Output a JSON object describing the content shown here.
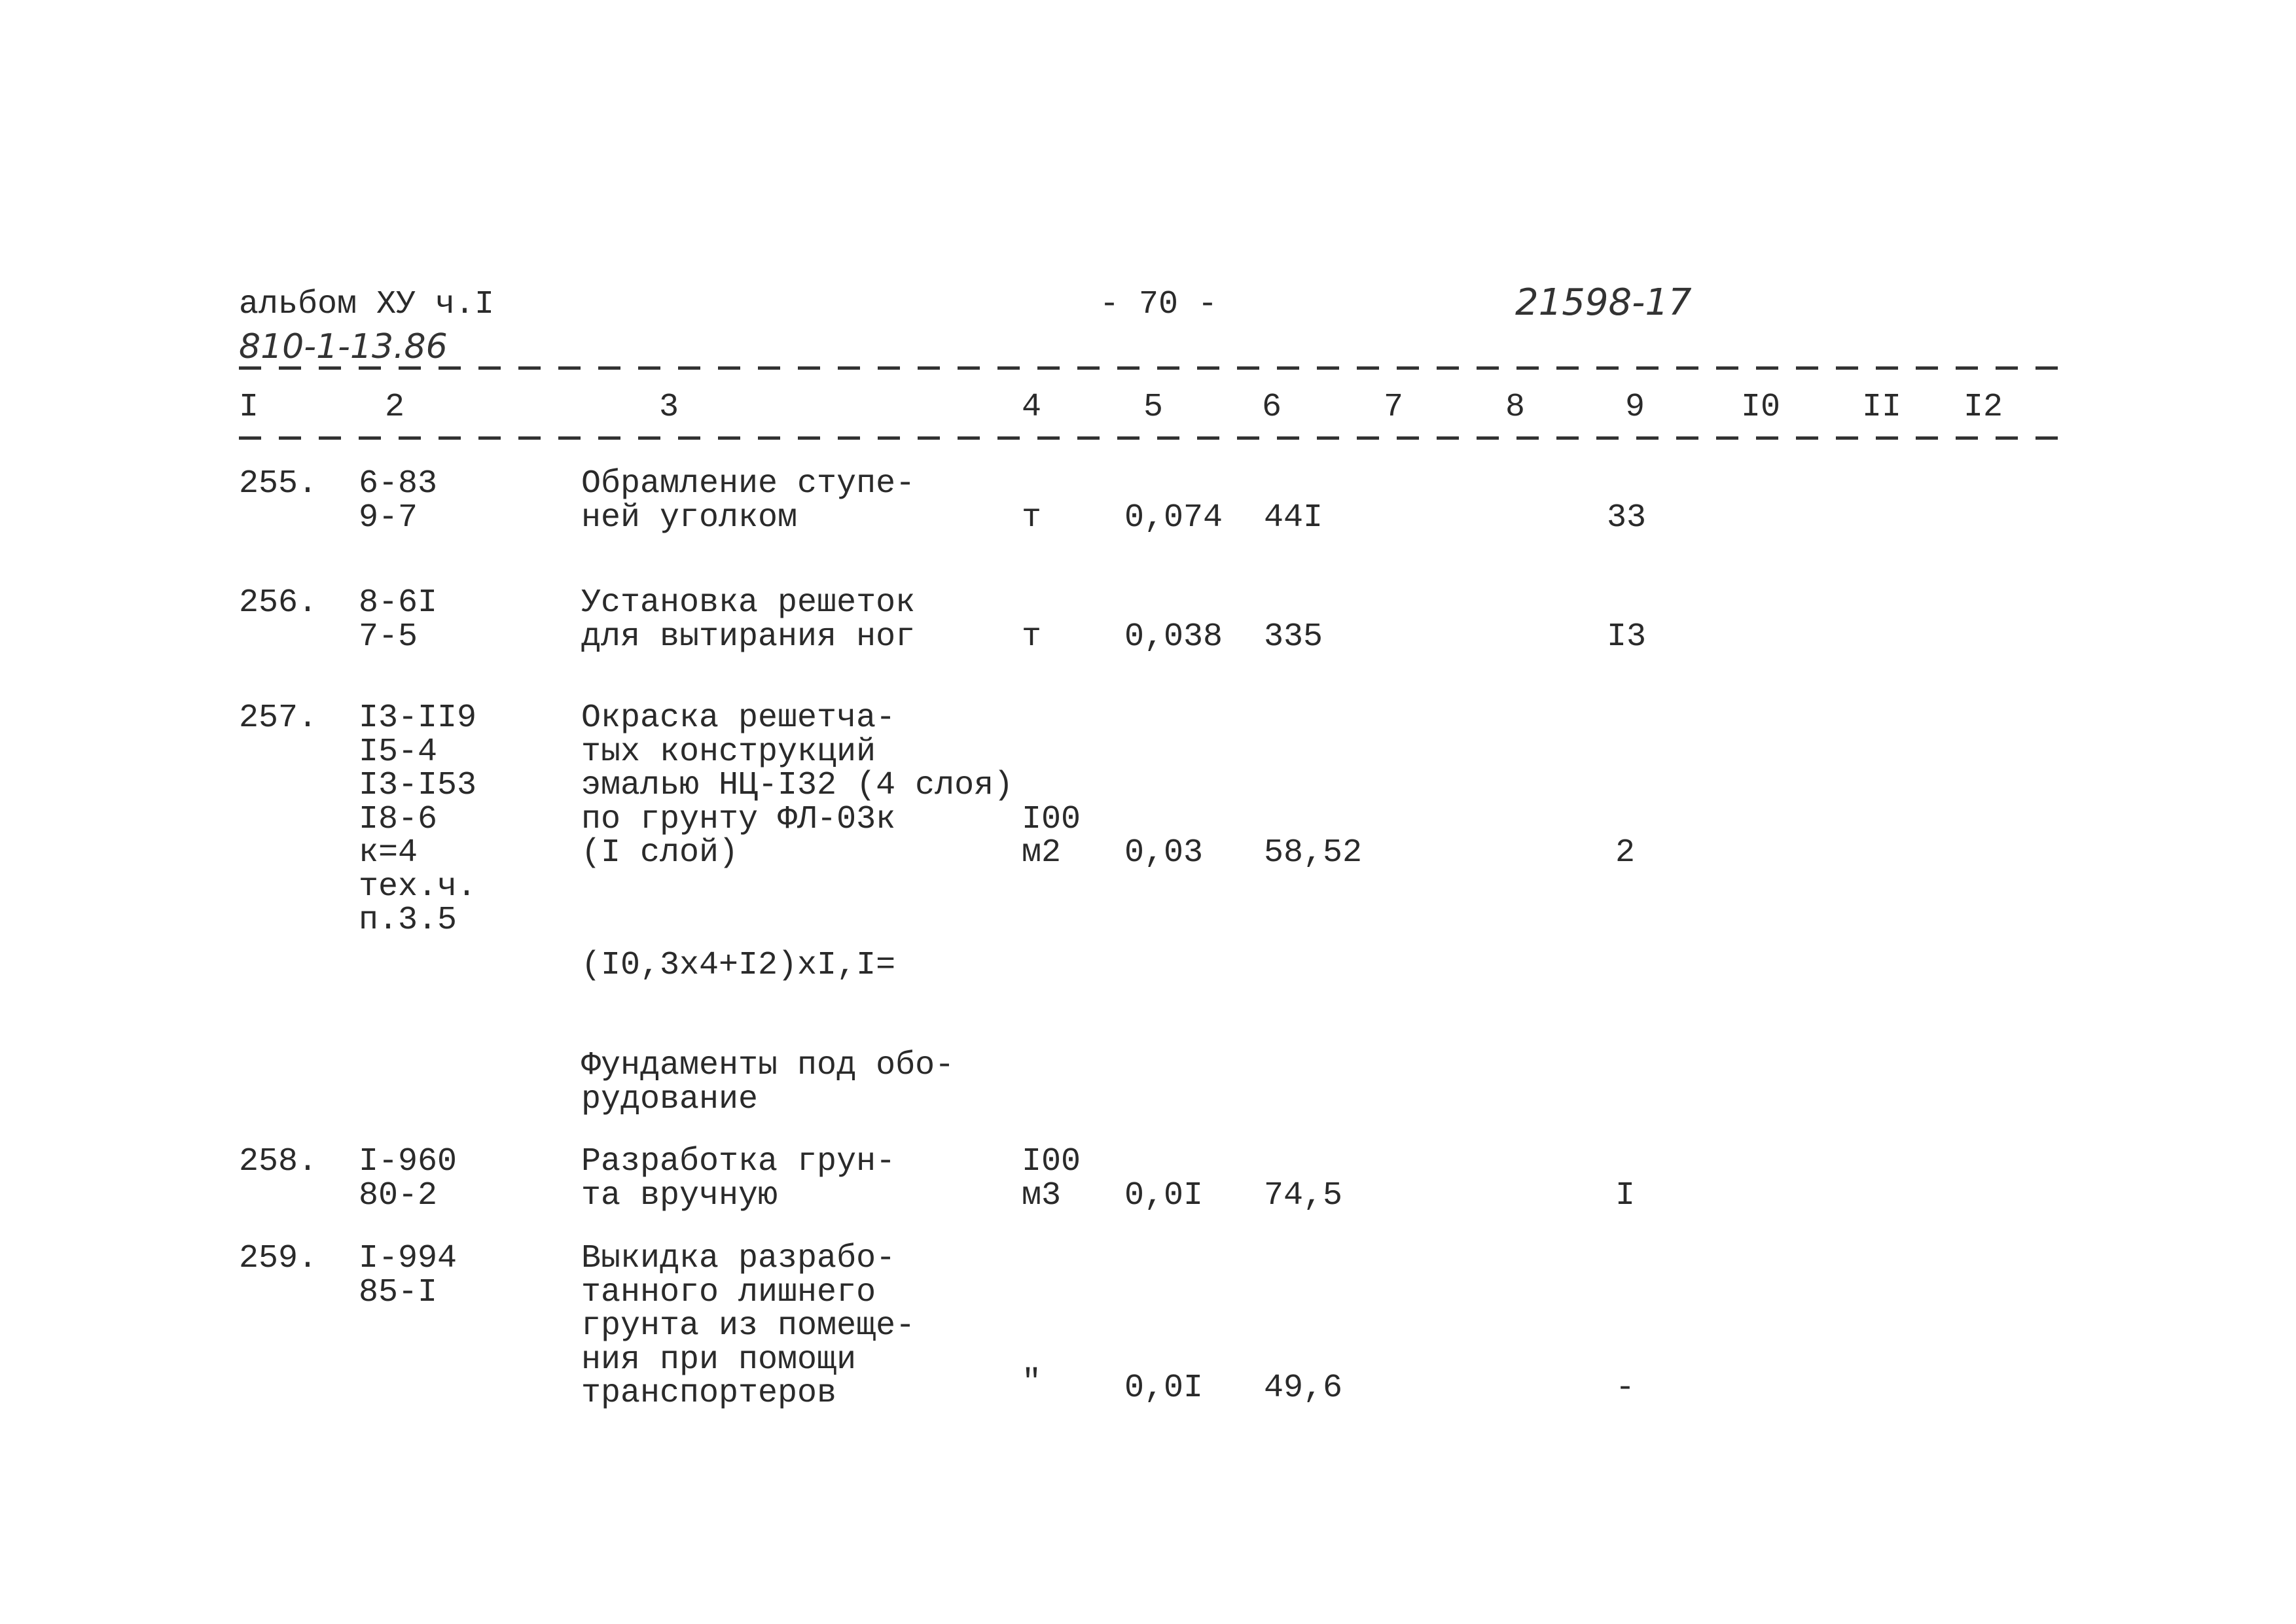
{
  "header": {
    "album": "альбом ХУ ч.I",
    "project_code": "810-1-13.86",
    "page_number": "- 70 -",
    "doc_number": "21598-17"
  },
  "columns": [
    "I",
    "2",
    "3",
    "4",
    "5",
    "6",
    "7",
    "8",
    "9",
    "I0",
    "II",
    "I2"
  ],
  "rows": [
    {
      "num": "255.",
      "code": "6-83\n9-7",
      "desc": "Обрамление ступе-\nней уголком",
      "unit": "т",
      "qty": "0,074",
      "price": "44I",
      "c9": "33"
    },
    {
      "num": "256.",
      "code": "8-6I\n7-5",
      "desc": "Установка решеток\nдля вытирания ног",
      "unit": "т",
      "qty": "0,038",
      "price": "335",
      "c9": "I3"
    },
    {
      "num": "257.",
      "code": "I3-II9\nI5-4\nI3-I53\nI8-6\nк=4\nтех.ч.\nп.3.5",
      "desc": "Окраска решетча-\nтых конструкций\nэмалью НЦ-I32 (4 слоя)\nпо грунту ФЛ-03к\n(I слой)",
      "unit": "I00\nм2",
      "qty": "0,03",
      "price": "58,52",
      "c9": "2",
      "formula": "(I0,3x4+I2)xI,I="
    },
    {
      "num": "258.",
      "code": "I-960\n80-2",
      "desc": "Разработка грун-\nта вручную",
      "unit": "I00\nм3",
      "qty": "0,0I",
      "price": "74,5",
      "c9": "I"
    },
    {
      "num": "259.",
      "code": "I-994\n85-I",
      "desc": "Выкидка разрабо-\nтанного лишнего\nгрунта из помеще-\nния при помощи\nтранспортеров",
      "unit": "\"",
      "qty": "0,0I",
      "price": "49,6",
      "c9": "-"
    }
  ],
  "section_heading": "Фундаменты под обо-\nрудование"
}
